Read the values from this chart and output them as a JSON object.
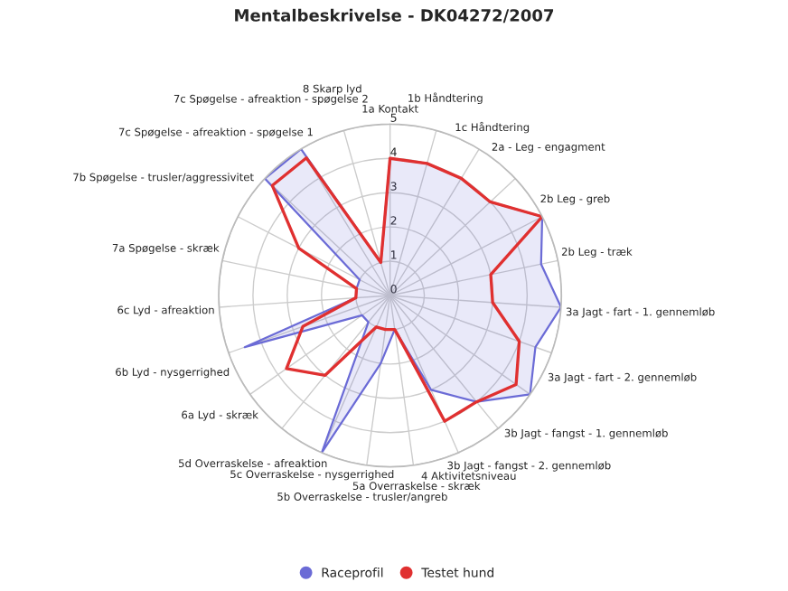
{
  "chart_data": {
    "type": "radar",
    "title": "Mentalbeskrivelse - DK04272/2007",
    "categories": [
      "1a Kontakt",
      "1b Håndtering",
      "1c Håndtering",
      "2a - Leg - engagment",
      "2b Leg - greb",
      "2b Leg - træk",
      "3a Jagt - fart - 1. gennemløb",
      "3a Jagt - fart - 2. gennemløb",
      "3b Jagt - fangst - 1. gennemløb",
      "3b Jagt - fangst - 2. gennemløb",
      "4 Aktivitetsniveau",
      "5a Overraskelse - skræk",
      "5b Overraskelse - trusler/angreb",
      "5c Overraskelse - nysgerrighed",
      "5d Overraskelse - afreaktion",
      "6a Lyd - skræk",
      "6b Lyd - nysgerrighed",
      "6c Lyd - afreaktion",
      "7a Spøgelse - skræk",
      "7b Spøgelse - trusler/aggressivitet",
      "7c Spøgelse - afreaktion - spøgelse 1",
      "7c Spøgelse - afreaktion - spøgelse 2",
      "8 Skarp lyd"
    ],
    "series": [
      {
        "name": "Raceprofil",
        "color": "#6b6bd6",
        "type": "area",
        "values": [
          4,
          4,
          4,
          4,
          5,
          4.5,
          5,
          4.5,
          5,
          4,
          3,
          1,
          2,
          5,
          1,
          1,
          4.5,
          1,
          1,
          1,
          5,
          5,
          1
        ]
      },
      {
        "name": "Testet hund",
        "color": "#e03030",
        "values": [
          4,
          4,
          4,
          4,
          5,
          3,
          3,
          4,
          4.5,
          4,
          4,
          1,
          1,
          1,
          3,
          3.7,
          2.7,
          1,
          1,
          3,
          4.7,
          4.7,
          1
        ]
      }
    ],
    "ylim": [
      0,
      5
    ],
    "yticks": [
      0,
      1,
      2,
      3,
      4,
      5
    ],
    "grid": true,
    "legend": "bottom",
    "marker": "none"
  }
}
